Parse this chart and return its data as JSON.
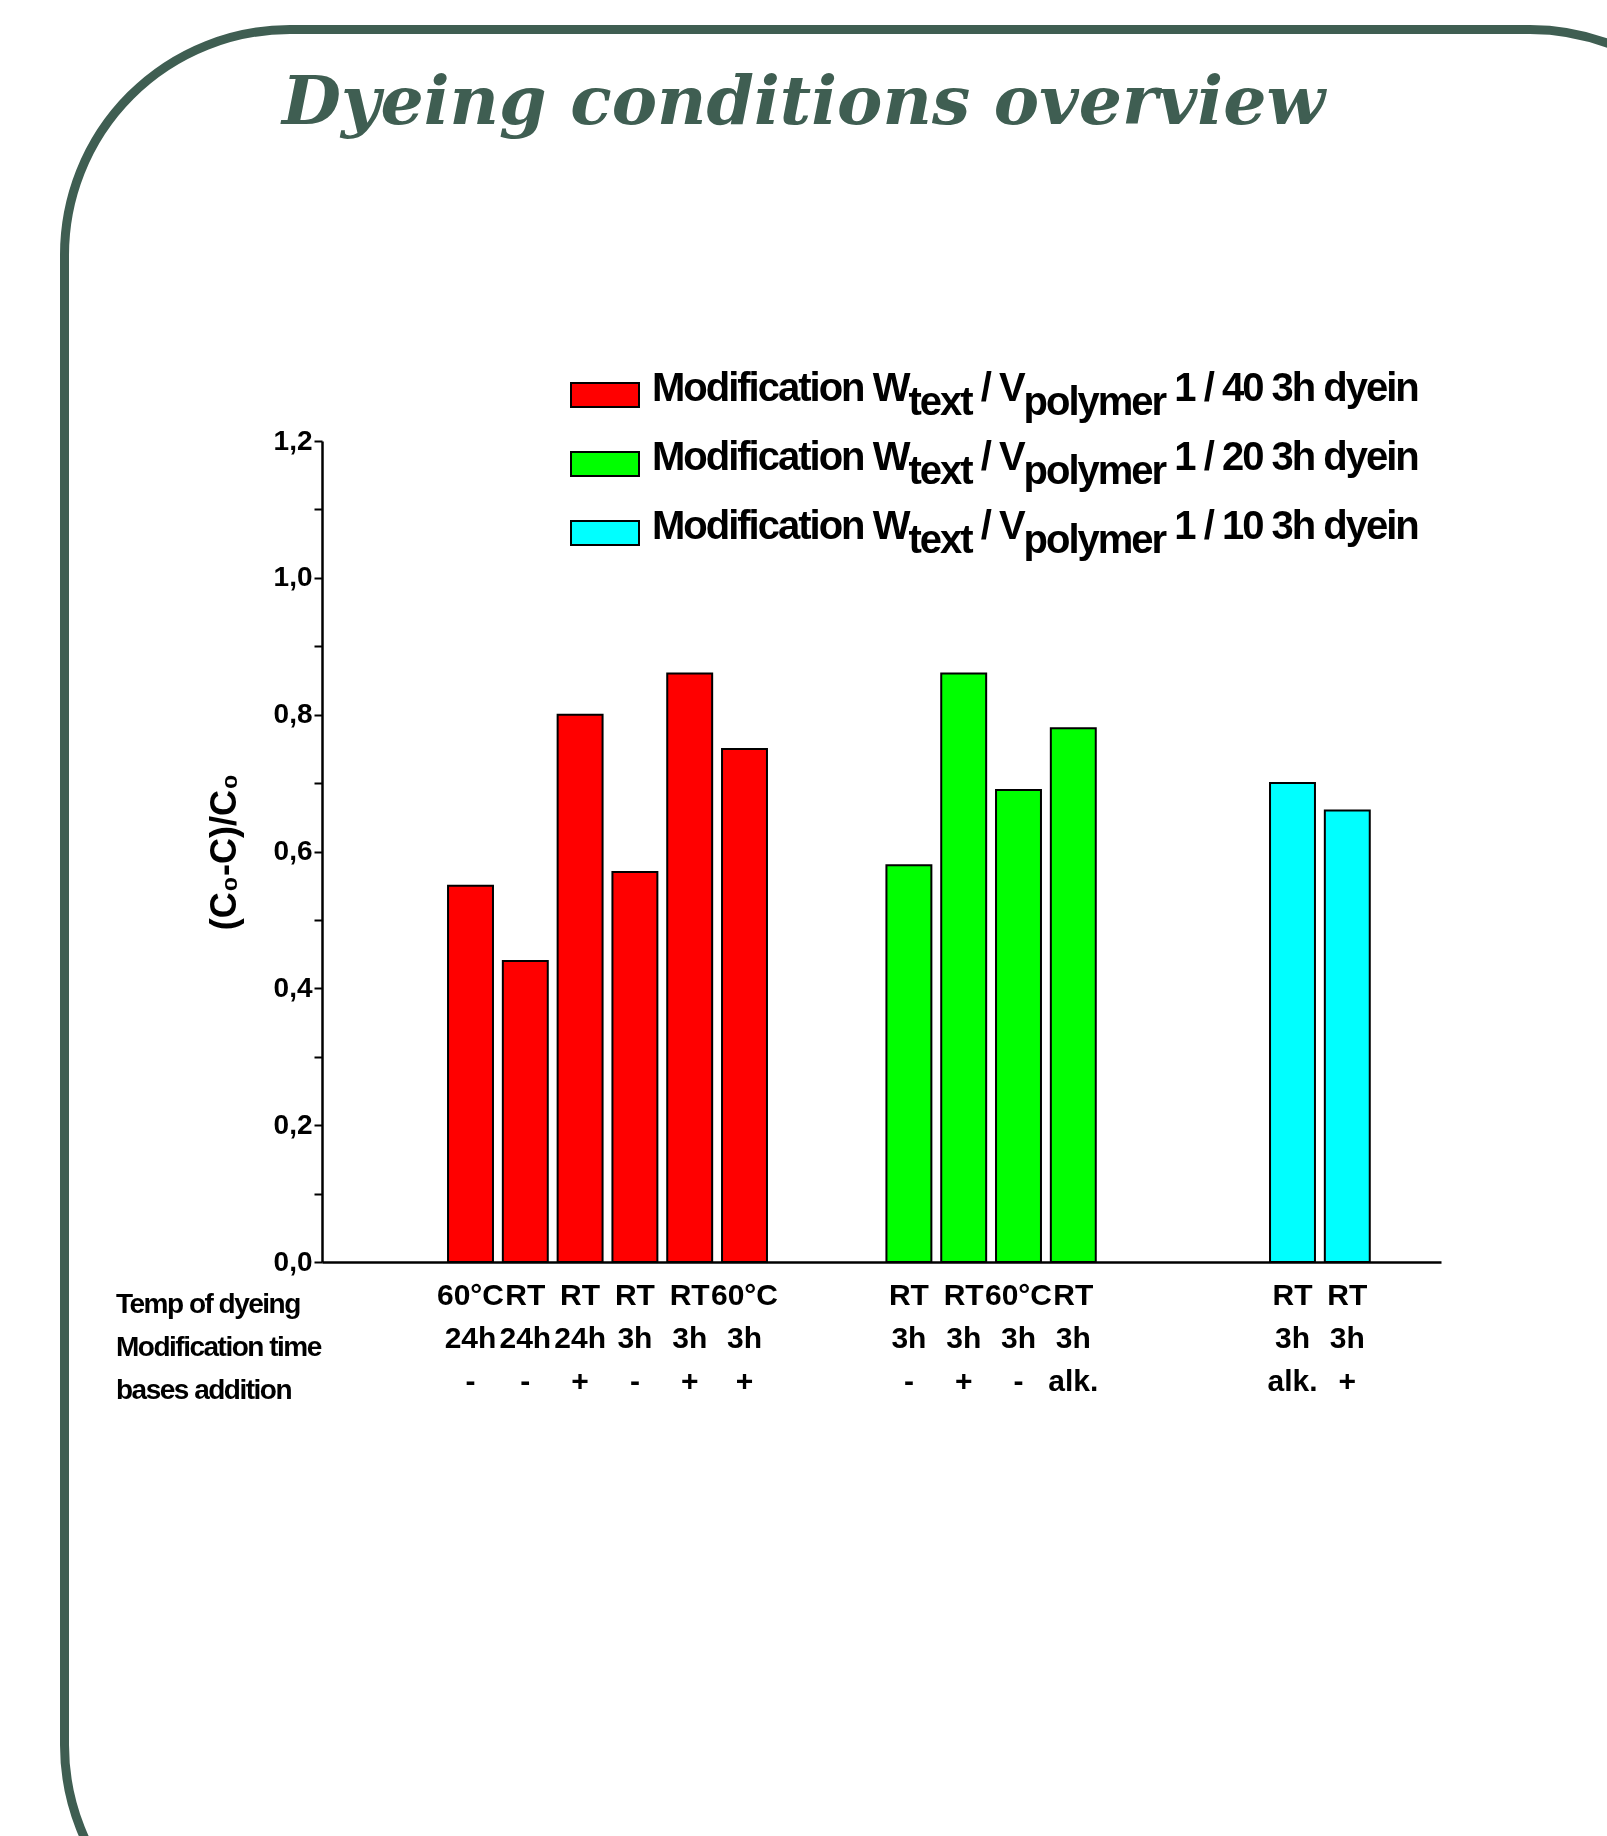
{
  "chart_data": {
    "type": "bar",
    "title": "Dyeing conditions overview",
    "ylabel": "(C₀-C)/C₀",
    "categories": [
      null,
      null,
      "60°C\n24h\n-",
      "RT\n24h\n-",
      "RT\n24h\n+",
      "RT\n3h\n-",
      "RT\n3h\n+",
      "60°C\n3h\n+",
      null,
      null,
      "RT\n3h\n-",
      "RT\n3h\n+",
      "60°C\n3h\n-",
      "RT\n3h\nalk.",
      null,
      null,
      null,
      "RT\n3h\nalk.",
      "RT\n3h\n+",
      null
    ],
    "series": [
      {
        "name": "Modification W$_{text}$ / V$_{polymer}$ 1 / 40 3h dyein",
        "color": "#ff0000",
        "values": [
          null,
          null,
          0.55,
          0.44,
          0.8,
          0.57,
          0.86,
          0.75,
          null,
          null,
          null,
          null,
          null,
          null,
          null,
          null,
          null,
          null,
          null,
          null
        ]
      },
      {
        "name": "Modification W$_{text}$ / V$_{polymer}$ 1 / 20 3h dyein",
        "color": "#00ff00",
        "values": [
          null,
          null,
          null,
          null,
          null,
          null,
          null,
          null,
          null,
          null,
          0.58,
          0.86,
          0.69,
          0.78,
          null,
          null,
          null,
          null,
          null,
          null
        ]
      },
      {
        "name": "Modification W$_{text}$ / V$_{polymer}$ 1 / 10 3h dyein",
        "color": "#00ffff",
        "values": [
          null,
          null,
          null,
          null,
          null,
          null,
          null,
          null,
          null,
          null,
          null,
          null,
          null,
          null,
          null,
          null,
          null,
          0.7,
          0.66,
          null
        ]
      }
    ],
    "ylim": [
      0,
      1.2
    ],
    "yticks": [
      {
        "value": 0,
        "label": "0,0"
      },
      {
        "value": 0.1,
        "label": null
      },
      {
        "value": 0.2,
        "label": "0,2"
      },
      {
        "value": 0.3,
        "label": null
      },
      {
        "value": 0.4,
        "label": "0,4"
      },
      {
        "value": 0.5,
        "label": null
      },
      {
        "value": 0.6,
        "label": "0,6"
      },
      {
        "value": 0.7,
        "label": null
      },
      {
        "value": 0.8,
        "label": "0,8"
      },
      {
        "value": 0.9,
        "label": null
      },
      {
        "value": 1.0,
        "label": "1,0"
      },
      {
        "value": 1.1,
        "label": null
      },
      {
        "value": 1.2,
        "label": "1,2"
      }
    ],
    "annotations": [
      "Temp of dyeing",
      "Modification time",
      "bases addition"
    ],
    "legend": "top right",
    "grid": false
  }
}
